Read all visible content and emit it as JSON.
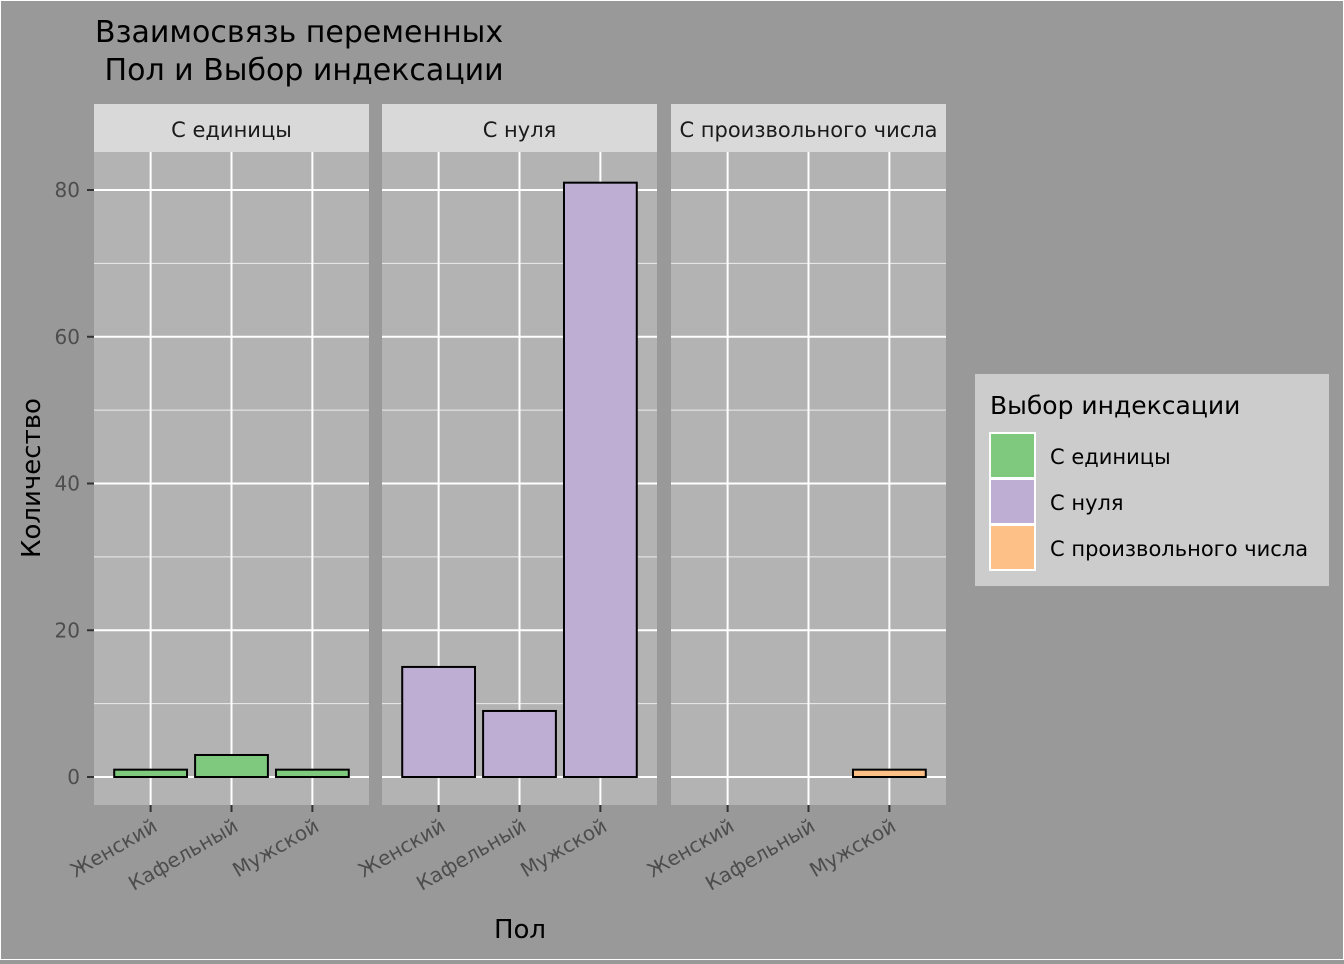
{
  "chart_data": {
    "type": "bar",
    "title_lines": [
      "Взаимосвязь переменных",
      " Пол и Выбор индексации"
    ],
    "xlabel": "Пол",
    "ylabel": "Количество",
    "categories": [
      "Женский",
      "Кафельный",
      "Мужской"
    ],
    "ylim": [
      0,
      88
    ],
    "yticks": [
      0,
      20,
      40,
      60,
      80
    ],
    "grid": true,
    "facets": [
      {
        "label": "С единицы",
        "color": "#7FC97F",
        "values": [
          1,
          3,
          1
        ]
      },
      {
        "label": "С нуля",
        "color": "#BEAED4",
        "values": [
          15,
          9,
          81
        ]
      },
      {
        "label": "С произвольного числа",
        "color": "#FDC086",
        "values": [
          0,
          0,
          1
        ]
      }
    ],
    "legend": {
      "title": "Выбор индексации",
      "placement": "right",
      "items": [
        {
          "label": "С единицы",
          "color": "#7FC97F"
        },
        {
          "label": "С нуля",
          "color": "#BEAED4"
        },
        {
          "label": "С произвольного числа",
          "color": "#FDC086"
        }
      ]
    }
  }
}
